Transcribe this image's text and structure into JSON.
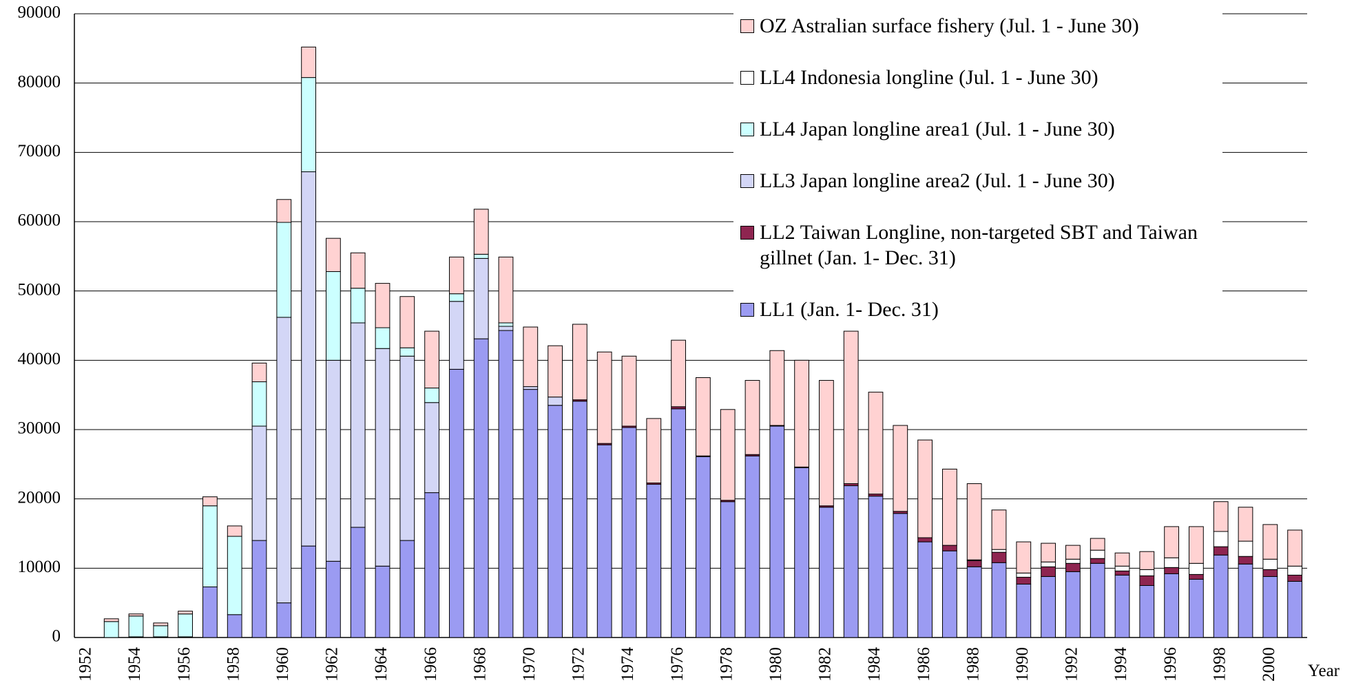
{
  "chart_data": {
    "type": "stacked_bar",
    "x_label": "Year",
    "categories": [
      "1952",
      null,
      "1954",
      null,
      "1956",
      null,
      "1958",
      null,
      "1960",
      null,
      "1962",
      null,
      "1964",
      null,
      "1966",
      null,
      "1968",
      null,
      "1970",
      null,
      "1972",
      null,
      "1974",
      null,
      "1976",
      null,
      "1978",
      null,
      "1980",
      null,
      "1982",
      null,
      "1984",
      null,
      "1986",
      null,
      "1988",
      null,
      "1990",
      null,
      "1992",
      null,
      "1994",
      null,
      "1996",
      null,
      "1998",
      null,
      "2000",
      null
    ],
    "series": [
      {
        "name": "LL1 (Jan. 1- Dec. 31)",
        "color": "#9b9bf2",
        "values": [
          0,
          0,
          100,
          100,
          100,
          7300,
          3300,
          14000,
          5000,
          13200,
          11000,
          15900,
          10300,
          14000,
          20900,
          38700,
          43100,
          44300,
          35800,
          33500,
          34100,
          27800,
          30300,
          22100,
          33000,
          26100,
          19600,
          26200,
          30500,
          24500,
          18800,
          21900,
          20400,
          17900,
          13800,
          12500,
          10200,
          10800,
          7700,
          8800,
          9500,
          10700,
          9000,
          7500,
          9200,
          8400,
          11900,
          10600,
          8800,
          8100
        ]
      },
      {
        "name": "LL2 Taiwan Longline, non-targeted SBT and Taiwan gillnet (Jan. 1- Dec. 31)",
        "color": "#8e2550",
        "values": [
          0,
          0,
          0,
          0,
          0,
          0,
          0,
          0,
          0,
          0,
          0,
          0,
          0,
          0,
          0,
          0,
          0,
          0,
          0,
          0,
          200,
          200,
          200,
          200,
          300,
          100,
          200,
          200,
          100,
          100,
          200,
          300,
          300,
          300,
          600,
          800,
          900,
          1500,
          1000,
          1400,
          1200,
          700,
          600,
          1400,
          900,
          700,
          1200,
          1100,
          1000,
          900
        ]
      },
      {
        "name": "LL3 Japan longline area2 (Jul. 1 - June 30)",
        "color": "#d3d6f6",
        "values": [
          0,
          0,
          0,
          0,
          0,
          0,
          0,
          16500,
          41200,
          54000,
          29000,
          29500,
          31400,
          26600,
          13000,
          9800,
          11600,
          600,
          400,
          1200,
          0,
          0,
          0,
          0,
          0,
          0,
          0,
          0,
          0,
          0,
          0,
          0,
          0,
          0,
          0,
          0,
          0,
          0,
          0,
          0,
          0,
          0,
          0,
          0,
          0,
          0,
          0,
          0,
          0,
          0
        ]
      },
      {
        "name": "LL4 Japan longline area1 (Jul. 1 - June 30)",
        "color": "#ccffff",
        "values": [
          0,
          2300,
          3000,
          1600,
          3300,
          11700,
          11300,
          6400,
          13700,
          13600,
          12800,
          5000,
          3000,
          1200,
          2100,
          1100,
          600,
          500,
          0,
          0,
          0,
          0,
          0,
          0,
          0,
          0,
          0,
          0,
          0,
          0,
          0,
          0,
          0,
          0,
          0,
          0,
          0,
          0,
          0,
          0,
          0,
          0,
          0,
          0,
          0,
          0,
          0,
          0,
          0,
          0
        ]
      },
      {
        "name": "LL4 Indonesia longline (Jul. 1 - June 30)",
        "color": "#ffffff",
        "values": [
          0,
          0,
          0,
          0,
          0,
          0,
          0,
          0,
          0,
          0,
          0,
          0,
          0,
          0,
          0,
          0,
          0,
          0,
          0,
          0,
          0,
          0,
          0,
          0,
          0,
          0,
          0,
          0,
          0,
          0,
          0,
          0,
          0,
          0,
          0,
          0,
          100,
          400,
          600,
          700,
          600,
          1200,
          700,
          900,
          1400,
          1600,
          2200,
          2200,
          1500,
          1300
        ]
      },
      {
        "name": "OZ Astralian surface fishery (Jul. 1 - June 30)",
        "color": "#ffd2d2",
        "values": [
          0,
          400,
          300,
          400,
          400,
          1300,
          1500,
          2700,
          3300,
          4400,
          4800,
          5100,
          6400,
          7400,
          8200,
          5300,
          6500,
          9500,
          8600,
          7400,
          10900,
          13200,
          10100,
          9300,
          9600,
          11300,
          13100,
          10700,
          10800,
          15400,
          18100,
          22000,
          14700,
          12400,
          14100,
          11000,
          11000,
          5700,
          4500,
          2700,
          2000,
          1700,
          1900,
          2600,
          4500,
          5300,
          4300,
          4900,
          5000,
          5200
        ]
      }
    ],
    "ylim": [
      0,
      90000
    ],
    "yticks": [
      0,
      10000,
      20000,
      30000,
      40000,
      50000,
      60000,
      70000,
      80000,
      90000
    ],
    "grid": true,
    "legend": "upper right"
  }
}
